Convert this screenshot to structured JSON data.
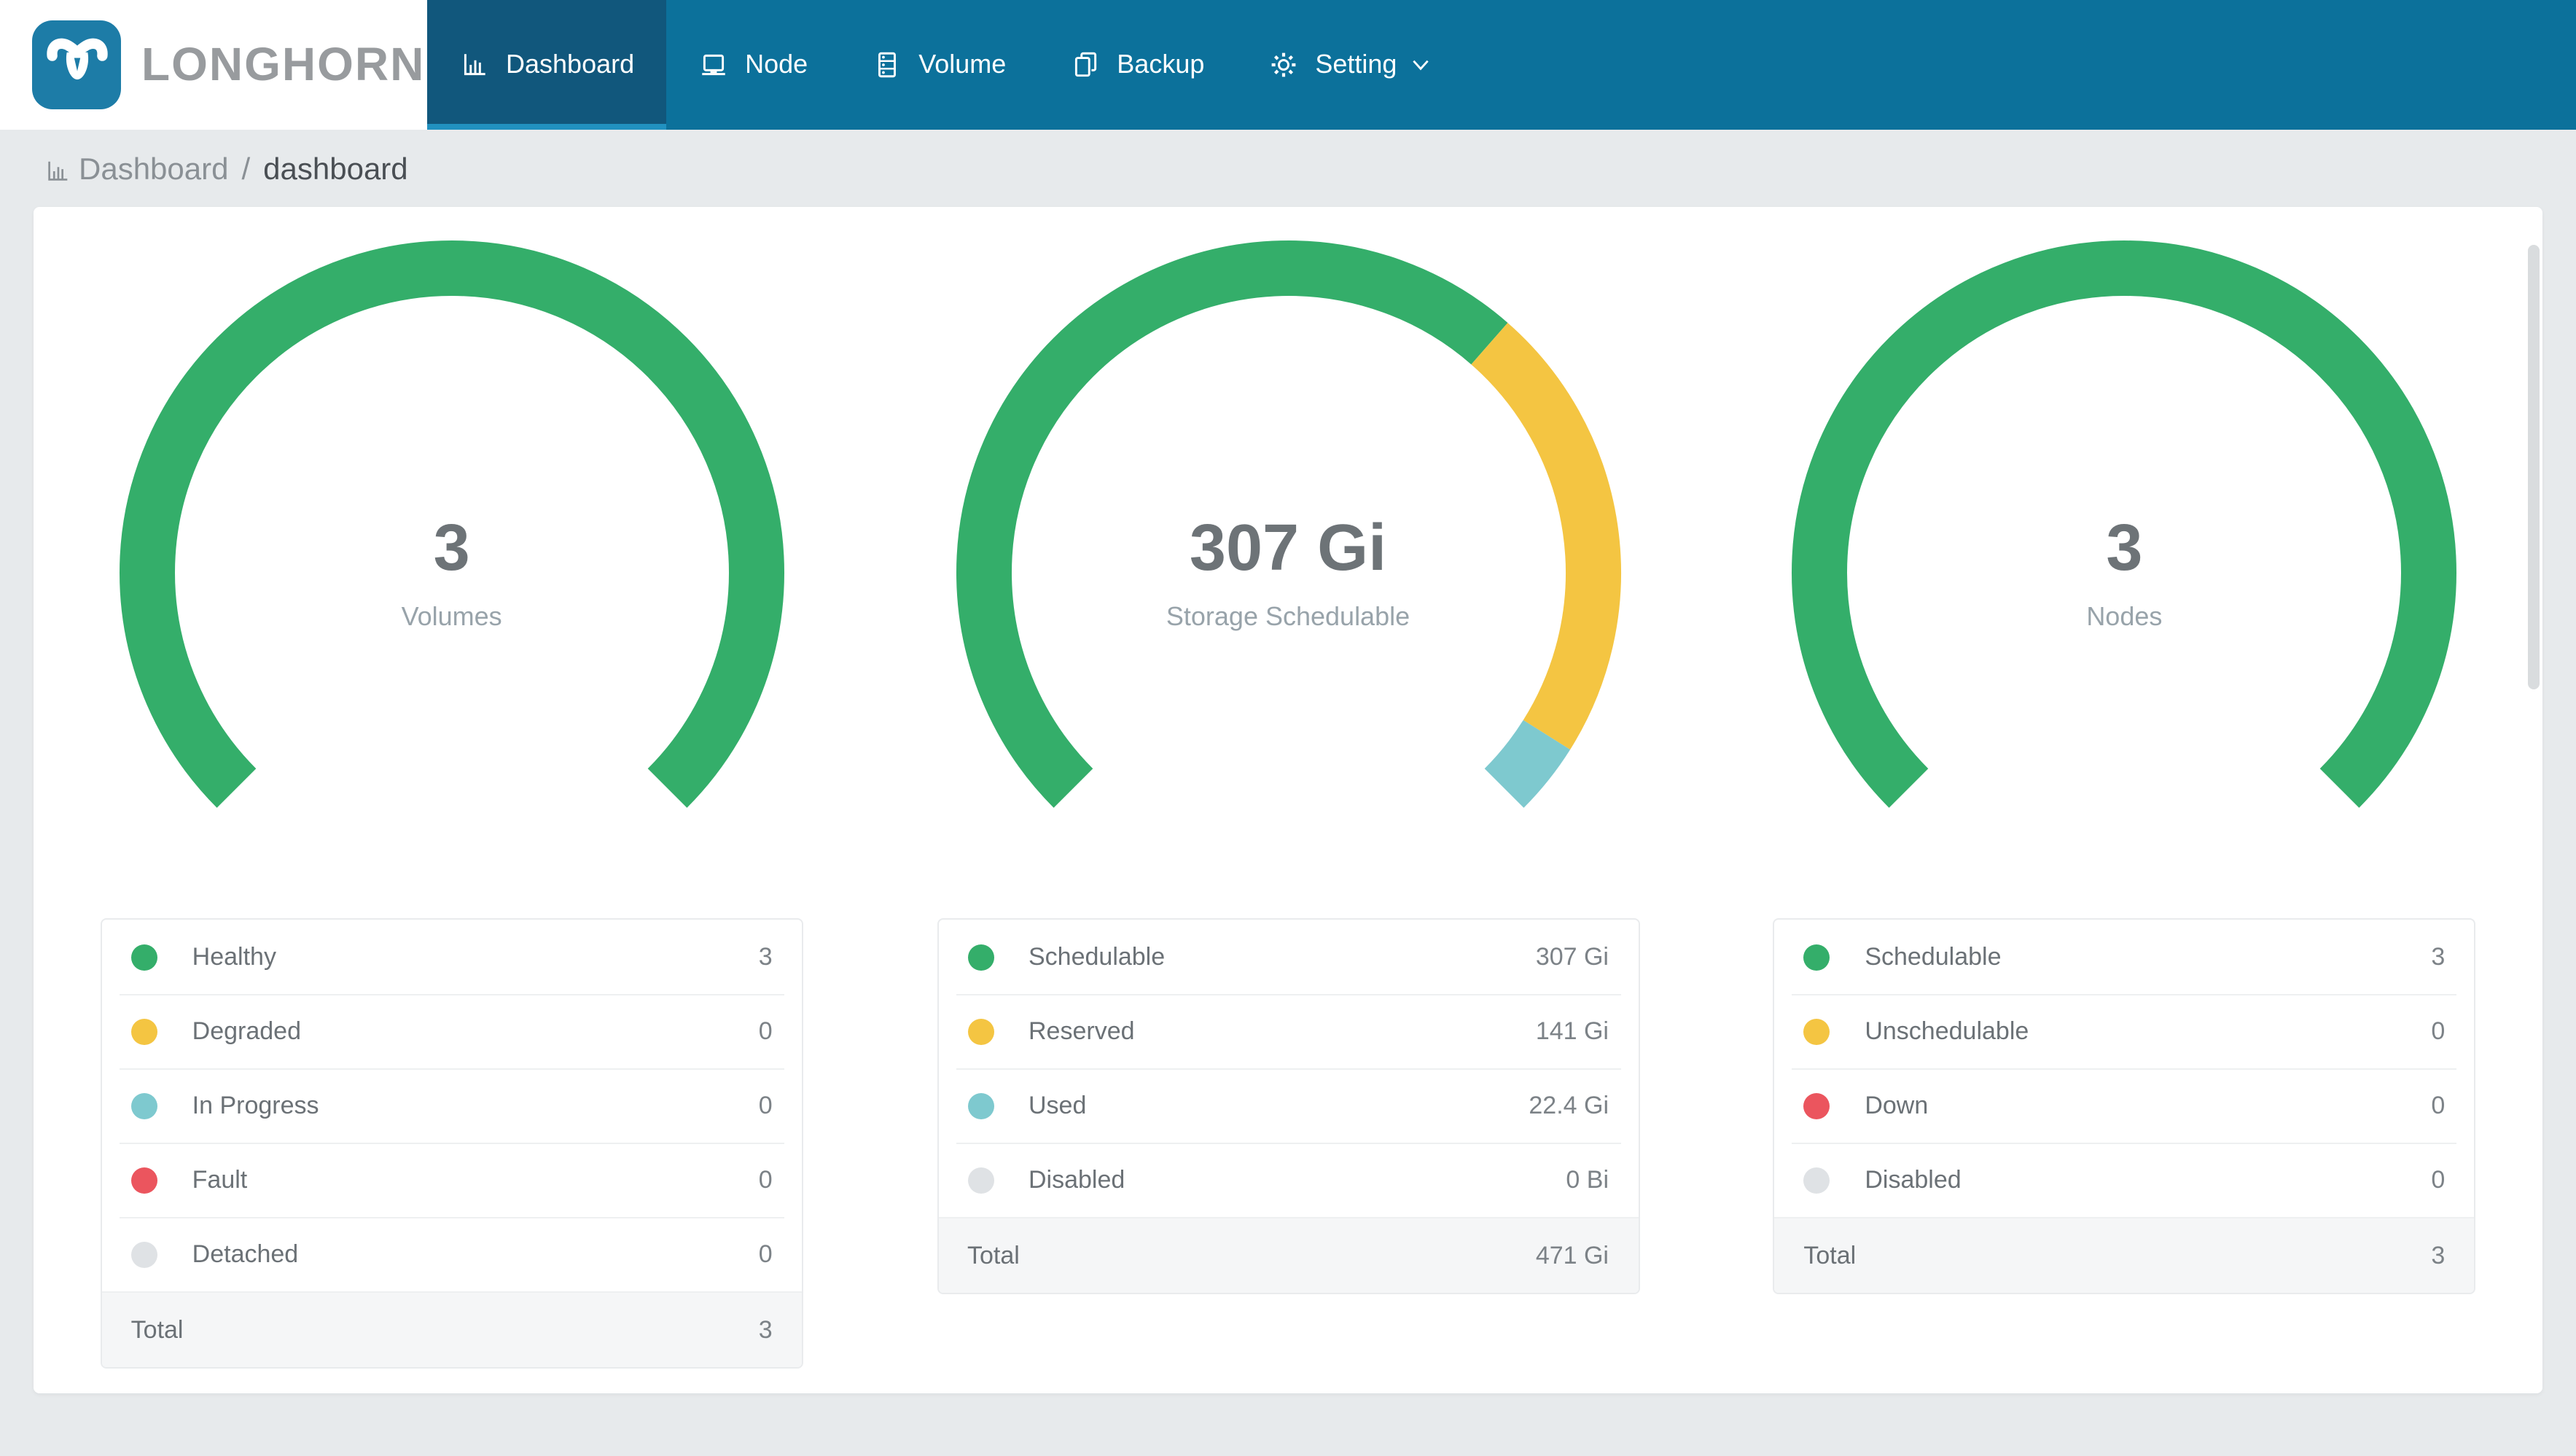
{
  "brand": {
    "name": "LONGHORN",
    "logo_icon": "longhorn-bull"
  },
  "nav": {
    "items": [
      {
        "label": "Dashboard",
        "icon": "bar-chart",
        "active": true
      },
      {
        "label": "Node",
        "icon": "laptop",
        "active": false
      },
      {
        "label": "Volume",
        "icon": "database",
        "active": false
      },
      {
        "label": "Backup",
        "icon": "copy",
        "active": false
      },
      {
        "label": "Setting",
        "icon": "gear",
        "active": false,
        "has_dropdown": true,
        "dropdown_icon": "chevron-down"
      }
    ]
  },
  "breadcrumb": {
    "items": [
      "Dashboard",
      "dashboard"
    ],
    "separator": "/",
    "icon": "bar-chart"
  },
  "colors": {
    "page_bg": "#e7eaec",
    "nav_bg": "#0c719b",
    "nav_active_bg": "#11577c",
    "nav_active_indicator": "#2191c0",
    "brand_square": "#1d7ca7",
    "brand_text": "#989b9e",
    "breadcrumb": "#8a9095",
    "breadcrumb_current": "#4a4f54",
    "card_bg": "#ffffff",
    "number": "#6d7377",
    "label": "#98a3aa",
    "legend_label": "#6b7176",
    "legend_value": "#7c8287",
    "table_border": "#e9ebed",
    "row_border": "#eef0f1",
    "total_bg": "#f5f6f7",
    "scroll_thumb": "#d9dcde",
    "healthy_green": "#34ae6a",
    "warning_yellow": "#f4c542",
    "progress_teal": "#7ec9cf",
    "fault_red": "#eb555e",
    "disabled_gray": "#dfe2e5"
  },
  "chart_data": [
    {
      "type": "gauge-donut",
      "center_value": "3",
      "center_label": "Volumes",
      "arc": {
        "start_angle_deg": -135,
        "sweep_deg": 270,
        "ring_width": 38
      },
      "segments": [
        {
          "label": "Healthy",
          "value": 3,
          "display": "3",
          "color": "#34ae6a"
        },
        {
          "label": "Degraded",
          "value": 0,
          "display": "0",
          "color": "#f4c542"
        },
        {
          "label": "In Progress",
          "value": 0,
          "display": "0",
          "color": "#7ec9cf"
        },
        {
          "label": "Fault",
          "value": 0,
          "display": "0",
          "color": "#eb555e"
        },
        {
          "label": "Detached",
          "value": 0,
          "display": "0",
          "color": "#dfe2e5"
        }
      ],
      "total": {
        "label": "Total",
        "display": "3"
      }
    },
    {
      "type": "gauge-donut",
      "center_value": "307 Gi",
      "center_label": "Storage Schedulable",
      "arc": {
        "start_angle_deg": -135,
        "sweep_deg": 270,
        "ring_width": 38
      },
      "segments": [
        {
          "label": "Schedulable",
          "value": 307,
          "display": "307 Gi",
          "color": "#34ae6a"
        },
        {
          "label": "Reserved",
          "value": 141,
          "display": "141 Gi",
          "color": "#f4c542"
        },
        {
          "label": "Used",
          "value": 22.4,
          "display": "22.4 Gi",
          "color": "#7ec9cf"
        },
        {
          "label": "Disabled",
          "value": 0,
          "display": "0 Bi",
          "color": "#dfe2e5"
        }
      ],
      "total": {
        "label": "Total",
        "display": "471 Gi"
      }
    },
    {
      "type": "gauge-donut",
      "center_value": "3",
      "center_label": "Nodes",
      "arc": {
        "start_angle_deg": -135,
        "sweep_deg": 270,
        "ring_width": 38
      },
      "segments": [
        {
          "label": "Schedulable",
          "value": 3,
          "display": "3",
          "color": "#34ae6a"
        },
        {
          "label": "Unschedulable",
          "value": 0,
          "display": "0",
          "color": "#f4c542"
        },
        {
          "label": "Down",
          "value": 0,
          "display": "0",
          "color": "#eb555e"
        },
        {
          "label": "Disabled",
          "value": 0,
          "display": "0",
          "color": "#dfe2e5"
        }
      ],
      "total": {
        "label": "Total",
        "display": "3"
      }
    }
  ]
}
